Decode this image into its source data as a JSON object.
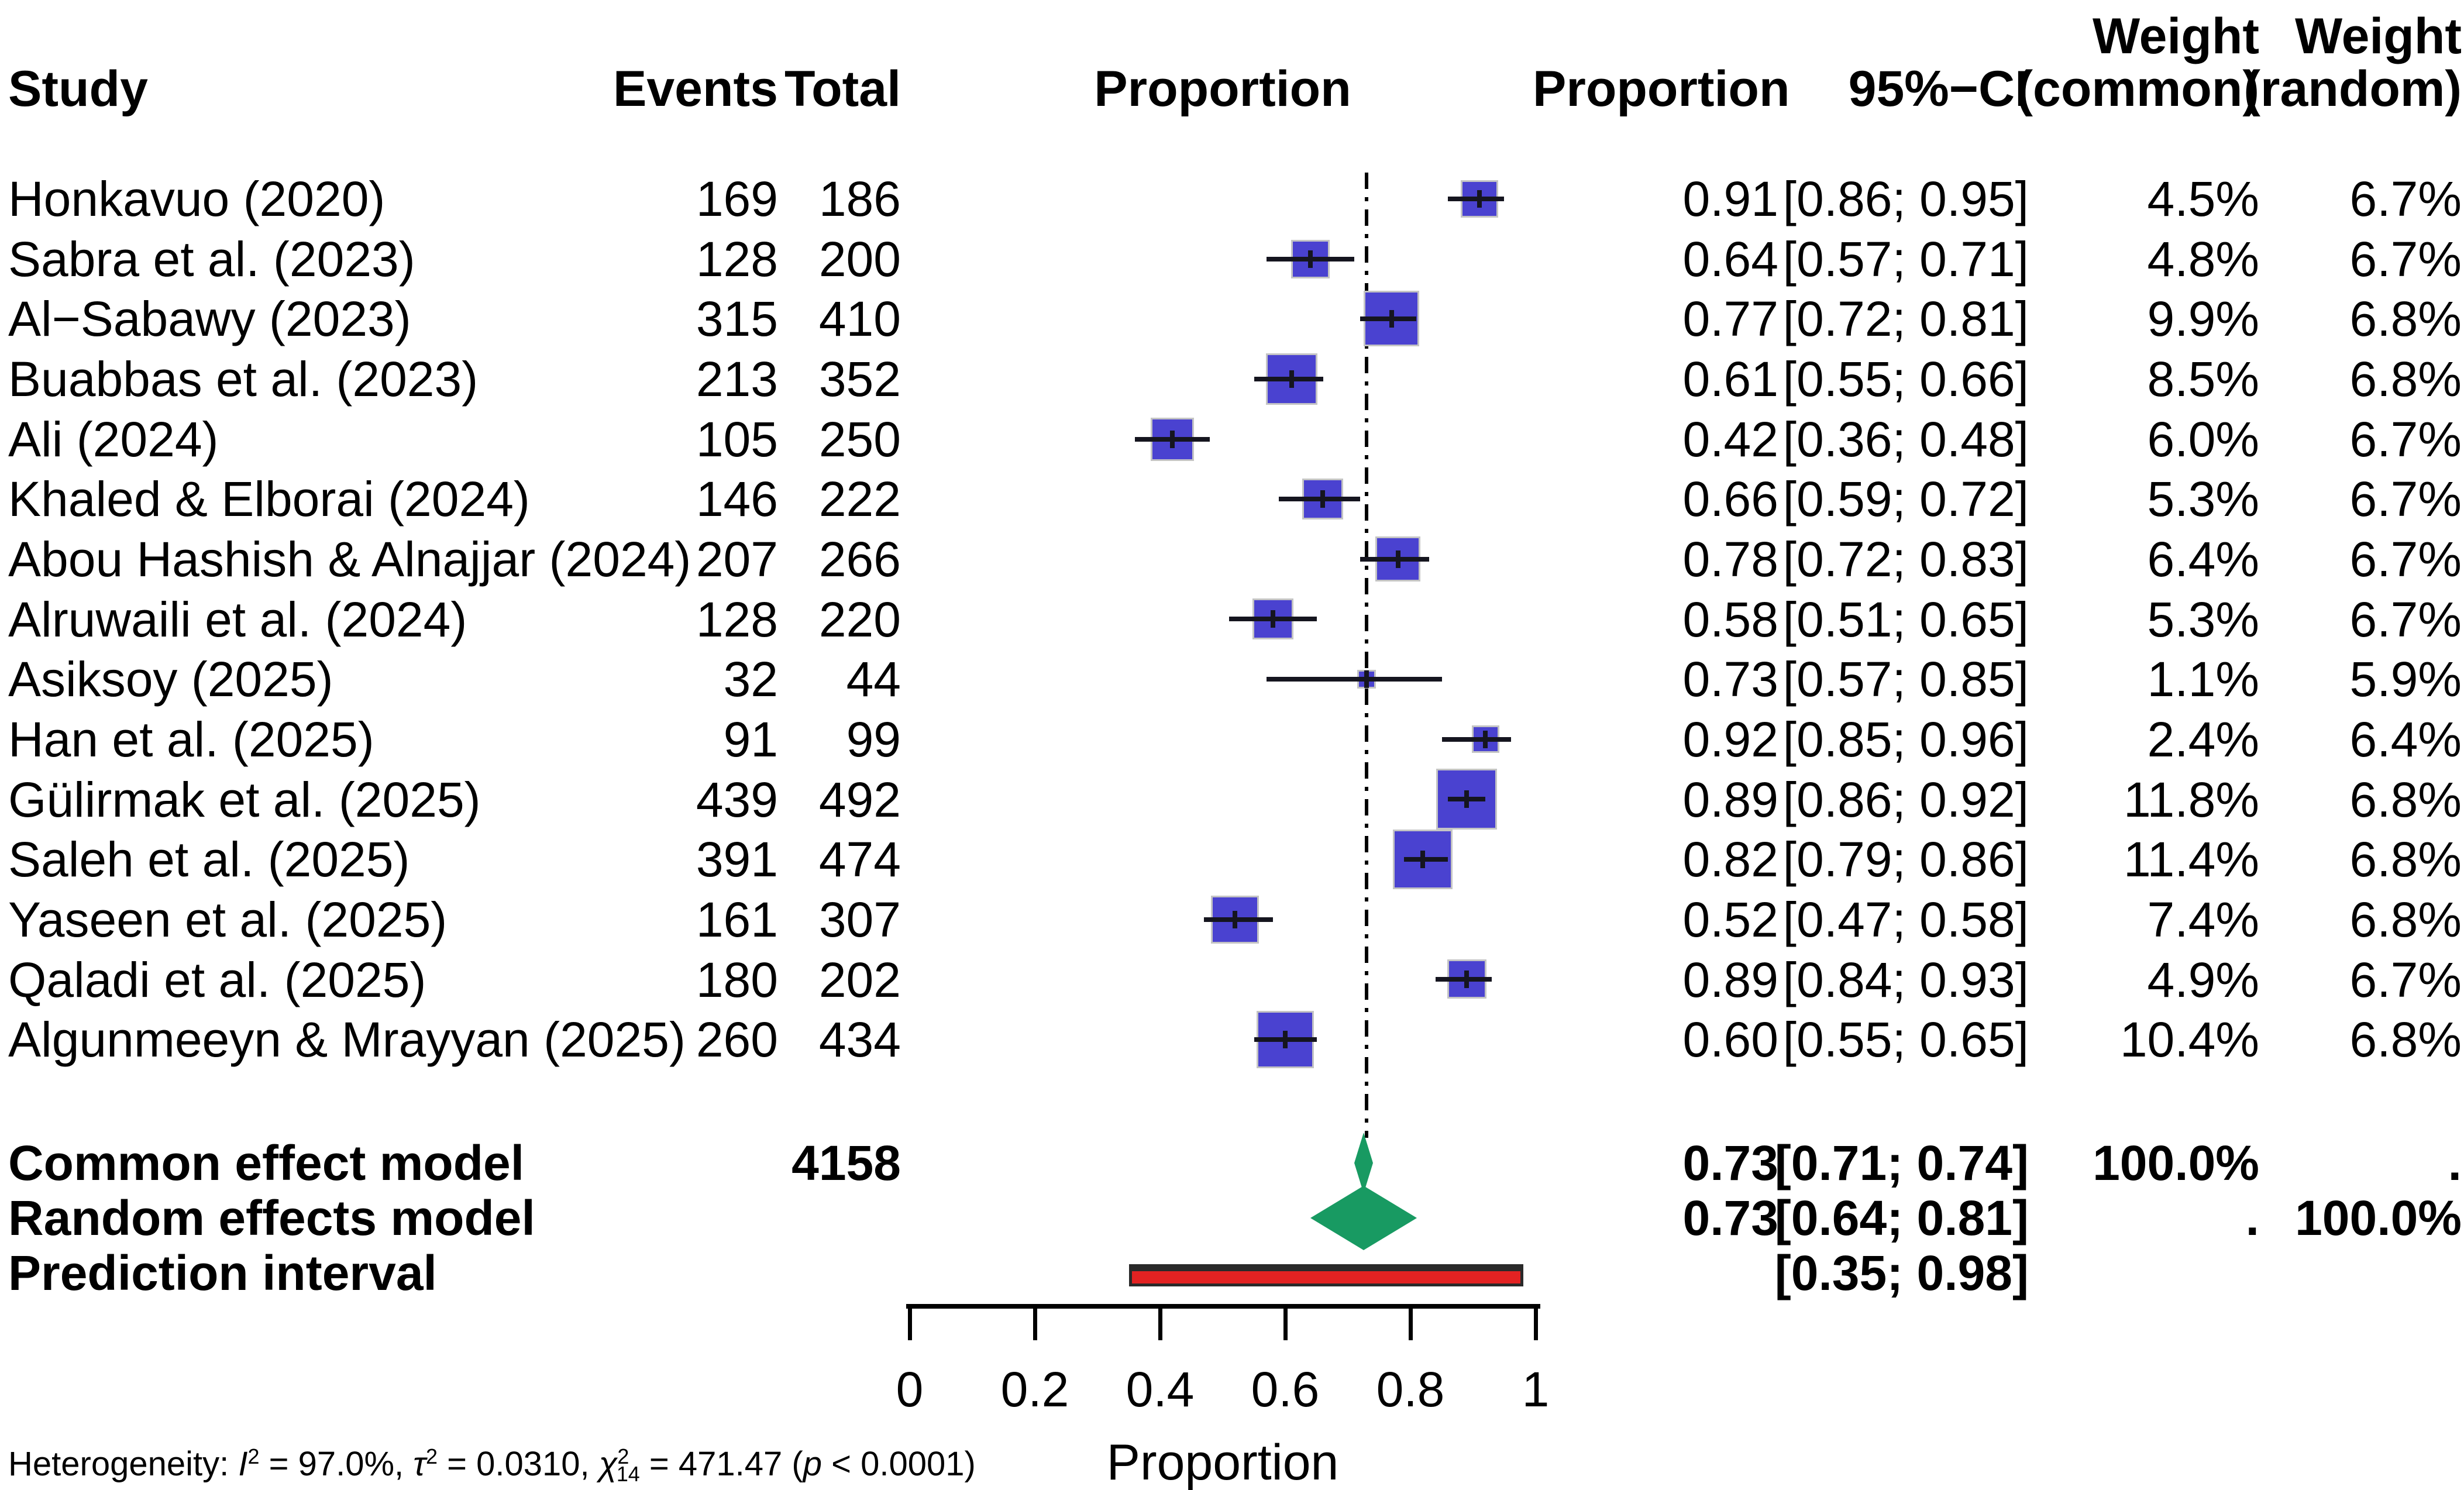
{
  "header": {
    "study": "Study",
    "events": "Events",
    "total": "Total",
    "plot_proportion": "Proportion",
    "proportion": "Proportion",
    "ci": "95%−CI",
    "weight_top_common": "Weight",
    "weight_top_random": "Weight",
    "weight_common": "(common)",
    "weight_random": "(random)"
  },
  "rows": [
    {
      "study": "Honkavuo (2020)",
      "events": "169",
      "total": "186",
      "proportion": "0.91",
      "ci": "[0.86; 0.95]",
      "w_common": "4.5%",
      "w_random": "6.7%"
    },
    {
      "study": "Sabra et al. (2023)",
      "events": "128",
      "total": "200",
      "proportion": "0.64",
      "ci": "[0.57; 0.71]",
      "w_common": "4.8%",
      "w_random": "6.7%"
    },
    {
      "study": "Al−Sabawy (2023)",
      "events": "315",
      "total": "410",
      "proportion": "0.77",
      "ci": "[0.72; 0.81]",
      "w_common": "9.9%",
      "w_random": "6.8%"
    },
    {
      "study": "Buabbas et al. (2023)",
      "events": "213",
      "total": "352",
      "proportion": "0.61",
      "ci": "[0.55; 0.66]",
      "w_common": "8.5%",
      "w_random": "6.8%"
    },
    {
      "study": "Ali (2024)",
      "events": "105",
      "total": "250",
      "proportion": "0.42",
      "ci": "[0.36; 0.48]",
      "w_common": "6.0%",
      "w_random": "6.7%"
    },
    {
      "study": "Khaled & Elborai (2024)",
      "events": "146",
      "total": "222",
      "proportion": "0.66",
      "ci": "[0.59; 0.72]",
      "w_common": "5.3%",
      "w_random": "6.7%"
    },
    {
      "study": "Abou Hashish & Alnajjar (2024)",
      "events": "207",
      "total": "266",
      "proportion": "0.78",
      "ci": "[0.72; 0.83]",
      "w_common": "6.4%",
      "w_random": "6.7%"
    },
    {
      "study": "Alruwaili et al. (2024)",
      "events": "128",
      "total": "220",
      "proportion": "0.58",
      "ci": "[0.51; 0.65]",
      "w_common": "5.3%",
      "w_random": "6.7%"
    },
    {
      "study": "Asiksoy (2025)",
      "events": "32",
      "total": "44",
      "proportion": "0.73",
      "ci": "[0.57; 0.85]",
      "w_common": "1.1%",
      "w_random": "5.9%"
    },
    {
      "study": "Han et al. (2025)",
      "events": "91",
      "total": "99",
      "proportion": "0.92",
      "ci": "[0.85; 0.96]",
      "w_common": "2.4%",
      "w_random": "6.4%"
    },
    {
      "study": "Gülirmak et al. (2025)",
      "events": "439",
      "total": "492",
      "proportion": "0.89",
      "ci": "[0.86; 0.92]",
      "w_common": "11.8%",
      "w_random": "6.8%"
    },
    {
      "study": "Saleh et al. (2025)",
      "events": "391",
      "total": "474",
      "proportion": "0.82",
      "ci": "[0.79; 0.86]",
      "w_common": "11.4%",
      "w_random": "6.8%"
    },
    {
      "study": "Yaseen et al. (2025)",
      "events": "161",
      "total": "307",
      "proportion": "0.52",
      "ci": "[0.47; 0.58]",
      "w_common": "7.4%",
      "w_random": "6.8%"
    },
    {
      "study": "Qaladi et al. (2025)",
      "events": "180",
      "total": "202",
      "proportion": "0.89",
      "ci": "[0.84; 0.93]",
      "w_common": "4.9%",
      "w_random": "6.7%"
    },
    {
      "study": "Algunmeeyn & Mrayyan (2025)",
      "events": "260",
      "total": "434",
      "proportion": "0.60",
      "ci": "[0.55; 0.65]",
      "w_common": "10.4%",
      "w_random": "6.8%"
    }
  ],
  "summary": {
    "common": {
      "label": "Common effect model",
      "total": "4158",
      "proportion": "0.73",
      "ci": "[0.71; 0.74]",
      "w_common": "100.0%",
      "w_random": "."
    },
    "random": {
      "label": "Random effects model",
      "proportion": "0.73",
      "ci": "[0.64; 0.81]",
      "w_common": ".",
      "w_random": "100.0%"
    },
    "prediction": {
      "label": "Prediction interval",
      "ci": "[0.35; 0.98]"
    }
  },
  "footnote": {
    "t1": "Heterogeneity: ",
    "i": "I",
    "i_sup": "2",
    "t2": " = 97.0%, ",
    "tau": "τ",
    "tau_sup": "2",
    "t3": " = 0.0310, ",
    "chi": "χ",
    "chi_sup": "2",
    "chi_sub": "14",
    "t4": " = 471.47 (",
    "p": "p",
    "t5": " < 0.0001)"
  },
  "colors": {
    "square_fill": "#4a42d0",
    "square_border": "#c4c4c4",
    "ci_line": "#15151f",
    "diamond_fill": "#189a62",
    "prediction_fill": "#e32222",
    "prediction_border": "#2a2a2a",
    "dashed_line": "#000000",
    "text": "#000000"
  },
  "chart_data": {
    "type": "forest",
    "title": "",
    "xlabel": "Proportion",
    "axis": {
      "min": 0,
      "max": 1,
      "tick_values": [
        0,
        0.2,
        0.4,
        0.6,
        0.8,
        1
      ],
      "tick_labels": [
        "0",
        "0.2",
        "0.4",
        "0.6",
        "0.8",
        "1"
      ]
    },
    "reference_line": 0.73,
    "studies": [
      {
        "name": "Honkavuo (2020)",
        "events": 169,
        "total": 186,
        "proportion": 0.91,
        "ci_low": 0.86,
        "ci_high": 0.95,
        "weight_common": 4.5,
        "weight_random": 6.7
      },
      {
        "name": "Sabra et al. (2023)",
        "events": 128,
        "total": 200,
        "proportion": 0.64,
        "ci_low": 0.57,
        "ci_high": 0.71,
        "weight_common": 4.8,
        "weight_random": 6.7
      },
      {
        "name": "Al−Sabawy (2023)",
        "events": 315,
        "total": 410,
        "proportion": 0.77,
        "ci_low": 0.72,
        "ci_high": 0.81,
        "weight_common": 9.9,
        "weight_random": 6.8
      },
      {
        "name": "Buabbas et al. (2023)",
        "events": 213,
        "total": 352,
        "proportion": 0.61,
        "ci_low": 0.55,
        "ci_high": 0.66,
        "weight_common": 8.5,
        "weight_random": 6.8
      },
      {
        "name": "Ali (2024)",
        "events": 105,
        "total": 250,
        "proportion": 0.42,
        "ci_low": 0.36,
        "ci_high": 0.48,
        "weight_common": 6.0,
        "weight_random": 6.7
      },
      {
        "name": "Khaled & Elborai (2024)",
        "events": 146,
        "total": 222,
        "proportion": 0.66,
        "ci_low": 0.59,
        "ci_high": 0.72,
        "weight_common": 5.3,
        "weight_random": 6.7
      },
      {
        "name": "Abou Hashish & Alnajjar (2024)",
        "events": 207,
        "total": 266,
        "proportion": 0.78,
        "ci_low": 0.72,
        "ci_high": 0.83,
        "weight_common": 6.4,
        "weight_random": 6.7
      },
      {
        "name": "Alruwaili et al. (2024)",
        "events": 128,
        "total": 220,
        "proportion": 0.58,
        "ci_low": 0.51,
        "ci_high": 0.65,
        "weight_common": 5.3,
        "weight_random": 6.7
      },
      {
        "name": "Asiksoy (2025)",
        "events": 32,
        "total": 44,
        "proportion": 0.73,
        "ci_low": 0.57,
        "ci_high": 0.85,
        "weight_common": 1.1,
        "weight_random": 5.9
      },
      {
        "name": "Han et al. (2025)",
        "events": 91,
        "total": 99,
        "proportion": 0.92,
        "ci_low": 0.85,
        "ci_high": 0.96,
        "weight_common": 2.4,
        "weight_random": 6.4
      },
      {
        "name": "Gülirmak et al. (2025)",
        "events": 439,
        "total": 492,
        "proportion": 0.89,
        "ci_low": 0.86,
        "ci_high": 0.92,
        "weight_common": 11.8,
        "weight_random": 6.8
      },
      {
        "name": "Saleh et al. (2025)",
        "events": 391,
        "total": 474,
        "proportion": 0.82,
        "ci_low": 0.79,
        "ci_high": 0.86,
        "weight_common": 11.4,
        "weight_random": 6.8
      },
      {
        "name": "Yaseen et al. (2025)",
        "events": 161,
        "total": 307,
        "proportion": 0.52,
        "ci_low": 0.47,
        "ci_high": 0.58,
        "weight_common": 7.4,
        "weight_random": 6.8
      },
      {
        "name": "Qaladi et al. (2025)",
        "events": 180,
        "total": 202,
        "proportion": 0.89,
        "ci_low": 0.84,
        "ci_high": 0.93,
        "weight_common": 4.9,
        "weight_random": 6.7
      },
      {
        "name": "Algunmeeyn & Mrayyan (2025)",
        "events": 260,
        "total": 434,
        "proportion": 0.6,
        "ci_low": 0.55,
        "ci_high": 0.65,
        "weight_common": 10.4,
        "weight_random": 6.8
      }
    ],
    "summaries": [
      {
        "name": "Common effect model",
        "total": 4158,
        "proportion": 0.73,
        "ci_low": 0.71,
        "ci_high": 0.74,
        "weight_common": 100.0
      },
      {
        "name": "Random effects model",
        "proportion": 0.73,
        "ci_low": 0.64,
        "ci_high": 0.81,
        "weight_random": 100.0
      }
    ],
    "prediction_interval": {
      "ci_low": 0.35,
      "ci_high": 0.98
    },
    "heterogeneity": {
      "I2": "97.0%",
      "tau2": 0.031,
      "chi2": 471.47,
      "df": 14,
      "p": "< 0.0001"
    }
  }
}
